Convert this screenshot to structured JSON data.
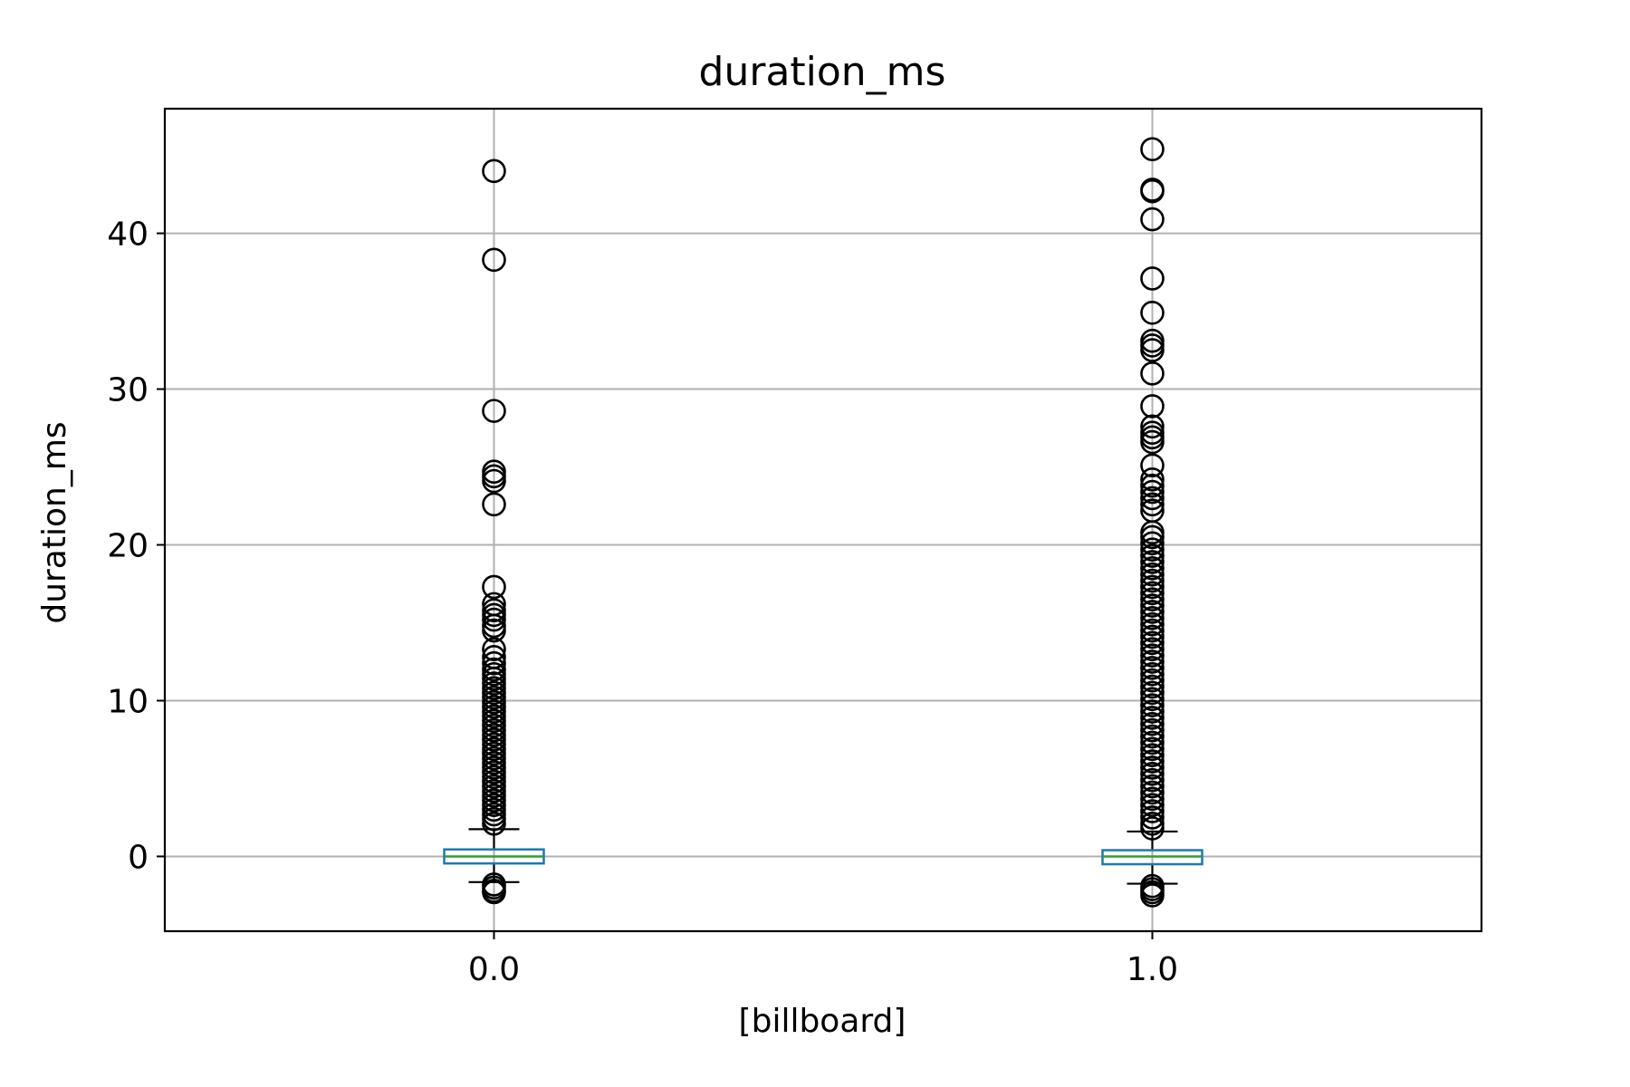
{
  "chart_data": {
    "type": "box",
    "title": "duration_ms",
    "xlabel": "[billboard]",
    "ylabel": "duration_ms",
    "categories": [
      "0.0",
      "1.0"
    ],
    "ylim": [
      -4.8,
      48
    ],
    "yticks": [
      0,
      10,
      20,
      30,
      40
    ],
    "grid": true,
    "colors": {
      "box": "#1f77b4",
      "median": "#2ca02c",
      "whisker": "#000000",
      "flier": "#000000",
      "grid": "#b0b0b0"
    },
    "series": [
      {
        "category": "0.0",
        "q1": -0.45,
        "median": 0.0,
        "q3": 0.45,
        "whisker_low": -1.65,
        "whisker_high": 1.75,
        "outliers_high": [
          44.0,
          38.3,
          28.6,
          24.7,
          24.4,
          24.1,
          22.6,
          17.3,
          16.2,
          15.8,
          15.5,
          15.2,
          14.8,
          14.5,
          13.3,
          12.8,
          12.4,
          12.0,
          11.7,
          11.4,
          11.1,
          10.8,
          10.5,
          10.2,
          9.9,
          9.6,
          9.3,
          9.0,
          8.7,
          8.4,
          8.1,
          7.8,
          7.5,
          7.2,
          6.9,
          6.6,
          6.3,
          6.0,
          5.7,
          5.4,
          5.1,
          4.8,
          4.5,
          4.2,
          3.9,
          3.6,
          3.3,
          3.0,
          2.7,
          2.4,
          2.1
        ],
        "outliers_low": [
          -1.8,
          -2.0,
          -2.2,
          -2.3
        ]
      },
      {
        "category": "1.0",
        "q1": -0.5,
        "median": 0.0,
        "q3": 0.4,
        "whisker_low": -1.75,
        "whisker_high": 1.6,
        "outliers_high": [
          45.4,
          42.8,
          42.7,
          40.9,
          37.1,
          34.9,
          33.1,
          32.8,
          32.5,
          31.0,
          28.9,
          27.6,
          27.2,
          26.9,
          26.6,
          25.1,
          24.2,
          23.8,
          23.4,
          23.0,
          22.6,
          22.2,
          20.8,
          20.5,
          20.1,
          19.7,
          19.3,
          18.9,
          18.5,
          18.1,
          17.7,
          17.3,
          16.9,
          16.5,
          16.1,
          15.7,
          15.3,
          14.9,
          14.5,
          14.1,
          13.7,
          13.3,
          12.9,
          12.5,
          12.1,
          11.7,
          11.3,
          10.9,
          10.5,
          10.1,
          9.7,
          9.3,
          8.9,
          8.5,
          8.1,
          7.7,
          7.3,
          6.9,
          6.5,
          6.1,
          5.7,
          5.3,
          4.9,
          4.5,
          4.1,
          3.7,
          3.3,
          2.9,
          2.5,
          2.1,
          1.8
        ],
        "outliers_low": [
          -1.9,
          -2.1,
          -2.3,
          -2.5
        ]
      }
    ]
  }
}
